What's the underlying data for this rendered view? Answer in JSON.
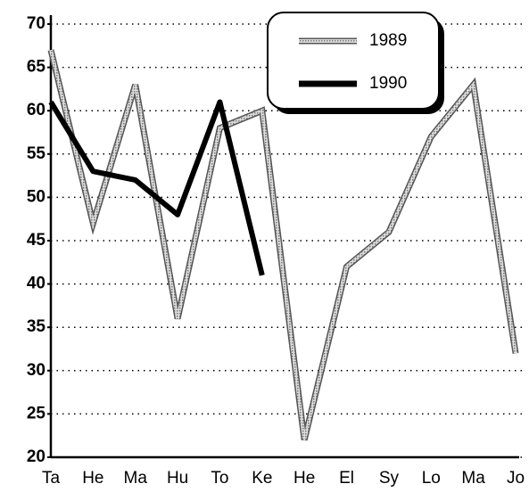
{
  "chart_data": {
    "type": "line",
    "categories": [
      "Ta",
      "He",
      "Ma",
      "Hu",
      "To",
      "Ke",
      "He",
      "El",
      "Sy",
      "Lo",
      "Ma",
      "Jo"
    ],
    "series": [
      {
        "name": "1989",
        "color": "#bbbbbb",
        "values": [
          67,
          47,
          63,
          36,
          58,
          60,
          22,
          42,
          46,
          57,
          63,
          32
        ]
      },
      {
        "name": "1990",
        "color": "#000000",
        "values": [
          61,
          53,
          52,
          48,
          61,
          41,
          null,
          null,
          null,
          null,
          null,
          null
        ]
      }
    ],
    "ylim": [
      20,
      70
    ],
    "yticks": [
      20,
      25,
      30,
      35,
      40,
      45,
      50,
      55,
      60,
      65,
      70
    ],
    "grid": true
  }
}
